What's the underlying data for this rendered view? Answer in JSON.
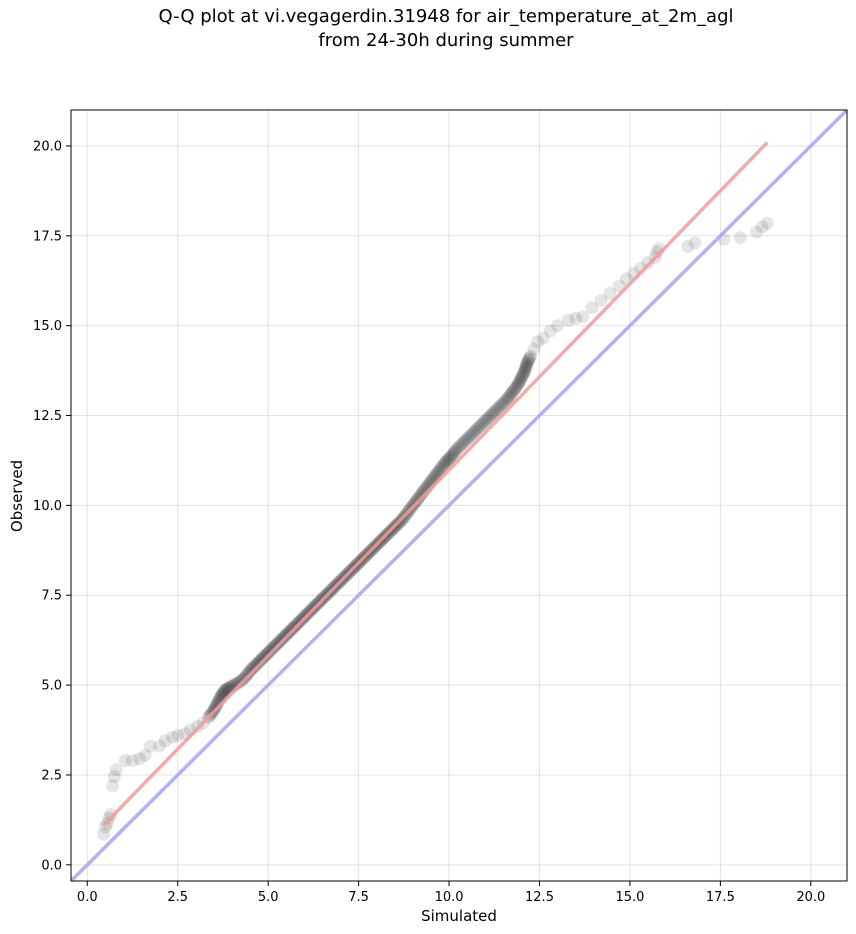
{
  "chart_data": {
    "type": "scatter",
    "title_lines": [
      "Q-Q plot at vi.vegagerdin.31948 for air_temperature_at_2m_agl",
      "from 24-30h during summer"
    ],
    "xlabel": "Simulated",
    "ylabel": "Observed",
    "xlim": [
      -0.45,
      21.0
    ],
    "ylim": [
      -0.45,
      21.0
    ],
    "x_ticks": [
      0.0,
      2.5,
      5.0,
      7.5,
      10.0,
      12.5,
      15.0,
      17.5,
      20.0
    ],
    "y_ticks": [
      0.0,
      2.5,
      5.0,
      7.5,
      10.0,
      12.5,
      15.0,
      17.5,
      20.0
    ],
    "tick_labels": [
      "0.0",
      "2.5",
      "5.0",
      "7.5",
      "10.0",
      "12.5",
      "15.0",
      "17.5",
      "20.0"
    ],
    "grid": true,
    "series": [
      {
        "kind": "quantile-points",
        "color": "#000000",
        "points": [
          [
            0.45,
            0.85
          ],
          [
            0.5,
            1.05
          ],
          [
            0.55,
            1.15
          ],
          [
            0.6,
            1.3
          ],
          [
            0.65,
            1.4
          ],
          [
            0.7,
            2.2
          ],
          [
            0.75,
            2.45
          ],
          [
            0.8,
            2.65
          ],
          [
            1.05,
            2.9
          ],
          [
            1.25,
            2.9
          ],
          [
            1.45,
            2.95
          ],
          [
            1.6,
            3.05
          ],
          [
            1.75,
            3.3
          ],
          [
            2.0,
            3.3
          ],
          [
            2.15,
            3.45
          ],
          [
            2.35,
            3.55
          ],
          [
            2.5,
            3.6
          ],
          [
            2.7,
            3.65
          ],
          [
            2.85,
            3.75
          ],
          [
            3.05,
            3.85
          ],
          [
            3.2,
            3.95
          ],
          [
            3.35,
            4.1
          ],
          [
            3.5,
            4.3
          ],
          [
            3.6,
            4.5
          ],
          [
            3.7,
            4.7
          ],
          [
            3.8,
            4.85
          ],
          [
            3.95,
            4.95
          ],
          [
            4.15,
            5.05
          ],
          [
            4.35,
            5.2
          ],
          [
            4.5,
            5.4
          ],
          [
            4.65,
            5.55
          ],
          [
            4.8,
            5.7
          ],
          [
            4.95,
            5.85
          ],
          [
            5.1,
            6.0
          ],
          [
            5.25,
            6.15
          ],
          [
            5.4,
            6.3
          ],
          [
            5.55,
            6.45
          ],
          [
            5.7,
            6.6
          ],
          [
            5.85,
            6.75
          ],
          [
            6.0,
            6.9
          ],
          [
            6.15,
            7.05
          ],
          [
            6.3,
            7.2
          ],
          [
            6.45,
            7.35
          ],
          [
            6.6,
            7.5
          ],
          [
            6.75,
            7.65
          ],
          [
            6.9,
            7.8
          ],
          [
            7.05,
            7.95
          ],
          [
            7.2,
            8.1
          ],
          [
            7.35,
            8.25
          ],
          [
            7.5,
            8.4
          ],
          [
            7.65,
            8.55
          ],
          [
            7.8,
            8.7
          ],
          [
            7.95,
            8.85
          ],
          [
            8.1,
            9.0
          ],
          [
            8.25,
            9.15
          ],
          [
            8.4,
            9.3
          ],
          [
            8.55,
            9.45
          ],
          [
            8.7,
            9.6
          ],
          [
            8.85,
            9.8
          ],
          [
            9.0,
            10.0
          ],
          [
            9.15,
            10.2
          ],
          [
            9.3,
            10.4
          ],
          [
            9.45,
            10.6
          ],
          [
            9.6,
            10.8
          ],
          [
            9.75,
            11.0
          ],
          [
            9.9,
            11.2
          ],
          [
            10.05,
            11.35
          ],
          [
            10.2,
            11.55
          ],
          [
            10.4,
            11.75
          ],
          [
            10.6,
            11.95
          ],
          [
            10.8,
            12.15
          ],
          [
            11.0,
            12.35
          ],
          [
            11.2,
            12.55
          ],
          [
            11.4,
            12.75
          ],
          [
            11.6,
            12.95
          ],
          [
            11.75,
            13.15
          ],
          [
            11.9,
            13.35
          ],
          [
            12.0,
            13.55
          ],
          [
            12.1,
            13.75
          ],
          [
            12.15,
            13.95
          ],
          [
            12.25,
            14.15
          ],
          [
            12.35,
            14.35
          ],
          [
            12.45,
            14.55
          ],
          [
            12.6,
            14.65
          ],
          [
            12.8,
            14.85
          ],
          [
            13.0,
            15.0
          ],
          [
            13.3,
            15.15
          ],
          [
            13.5,
            15.2
          ],
          [
            13.7,
            15.25
          ],
          [
            13.95,
            15.5
          ],
          [
            14.2,
            15.7
          ],
          [
            14.45,
            15.9
          ],
          [
            14.7,
            16.1
          ],
          [
            14.9,
            16.3
          ],
          [
            15.1,
            16.45
          ],
          [
            15.3,
            16.6
          ],
          [
            15.5,
            16.75
          ],
          [
            15.7,
            16.9
          ],
          [
            15.75,
            17.05
          ],
          [
            15.8,
            17.15
          ],
          [
            16.6,
            17.2
          ],
          [
            16.8,
            17.3
          ],
          [
            17.6,
            17.4
          ],
          [
            18.05,
            17.45
          ],
          [
            18.5,
            17.6
          ],
          [
            18.65,
            17.75
          ],
          [
            18.8,
            17.85
          ]
        ]
      },
      {
        "kind": "fit-line",
        "color": "#f59a9a",
        "points": [
          [
            0.45,
            1.1
          ],
          [
            18.8,
            20.1
          ]
        ]
      },
      {
        "kind": "one-to-one-line",
        "color": "#a3a5f5",
        "points": [
          [
            -0.45,
            -0.45
          ],
          [
            21.0,
            21.0
          ]
        ]
      }
    ]
  }
}
